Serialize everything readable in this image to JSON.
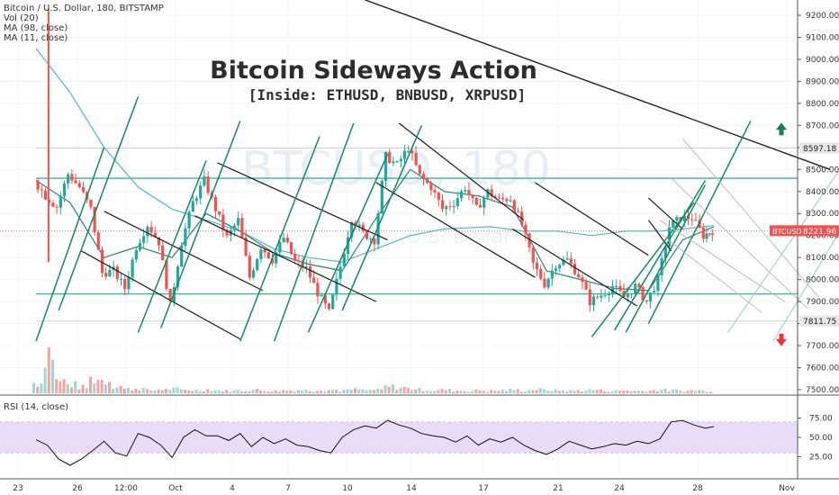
{
  "header": {
    "symbol_line": "Bitcoin / U.S. Dollar, 180, BITSTAMP",
    "volume_label": "Vol (20)",
    "ma_long_label": "MA (98, close)",
    "ma_short_label": "MA (11, close)",
    "rsi_label": "RSI (14, close)"
  },
  "annotation": {
    "title": "Bitcoin Sideways Action",
    "subtitle": "[Inside: ETHUSD, BNBUSD, XRPUSD]",
    "watermark_symbol": "BTCUSD",
    "watermark_interval": "180",
    "watermark_name": "U.S. Dollar"
  },
  "price_tags": {
    "upper_level": "8597.18",
    "current_symbol": "BTCUSD",
    "current_value": "8221.96",
    "lower_level": "7811.75"
  },
  "colors": {
    "up": "#26a69a",
    "down": "#ef5350",
    "channel": "#138a5e",
    "support": "#36b5a2",
    "ma_long": "#4fb8c8",
    "ma_short": "#2a7f7f",
    "rsi_band": "#e9dcf7",
    "trend": "#222222",
    "arrow_up": "#1b7d5b",
    "arrow_down": "#e53935"
  },
  "chart_data": {
    "type": "candlestick",
    "price_axis": {
      "ticks": [
        9200,
        9100,
        9000,
        8900,
        8800,
        8700,
        8600,
        8500,
        8400,
        8300,
        8200,
        8100,
        8000,
        7900,
        7800,
        7700,
        7600,
        7500
      ],
      "labels": [
        "9200.00",
        "9100.00",
        "9000.00",
        "8900.00",
        "8800.00",
        "8700.00",
        "8600.00",
        "8500.00",
        "8400.00",
        "8300.00",
        "8200.00",
        "8100.00",
        "8000.00",
        "7900.00",
        "7800.00",
        "7700.00",
        "7600.00",
        "7500.00"
      ],
      "range": [
        7480,
        9260
      ]
    },
    "rsi_axis": {
      "ticks": [
        75,
        50,
        25
      ],
      "labels": [
        "75.00",
        "50.00",
        "25.00"
      ],
      "range": [
        0,
        100
      ],
      "band": [
        30,
        70
      ]
    },
    "x_axis_labels": [
      "23",
      "26",
      "12:00",
      "Oct",
      "4",
      "7",
      "10",
      "14",
      "17",
      "21",
      "24",
      "28",
      "Nov"
    ],
    "close_path": [
      [
        0,
        8450
      ],
      [
        1,
        8380
      ],
      [
        2,
        8330
      ],
      [
        3,
        8480
      ],
      [
        4,
        8420
      ],
      [
        5,
        8320
      ],
      [
        6,
        8030
      ],
      [
        7,
        8040
      ],
      [
        8,
        7960
      ],
      [
        9,
        8150
      ],
      [
        10,
        8250
      ],
      [
        11,
        8170
      ],
      [
        12,
        7880
      ],
      [
        13,
        8170
      ],
      [
        14,
        8350
      ],
      [
        15,
        8450
      ],
      [
        16,
        8320
      ],
      [
        17,
        8190
      ],
      [
        18,
        8270
      ],
      [
        19,
        8010
      ],
      [
        20,
        8150
      ],
      [
        21,
        8090
      ],
      [
        22,
        8190
      ],
      [
        23,
        8080
      ],
      [
        24,
        8050
      ],
      [
        25,
        7940
      ],
      [
        26,
        7850
      ],
      [
        27,
        8060
      ],
      [
        28,
        8280
      ],
      [
        29,
        8210
      ],
      [
        30,
        8180
      ],
      [
        31,
        8560
      ],
      [
        32,
        8520
      ],
      [
        33,
        8600
      ],
      [
        34,
        8470
      ],
      [
        35,
        8420
      ],
      [
        36,
        8320
      ],
      [
        37,
        8350
      ],
      [
        38,
        8420
      ],
      [
        39,
        8320
      ],
      [
        40,
        8400
      ],
      [
        41,
        8360
      ],
      [
        42,
        8370
      ],
      [
        43,
        8250
      ],
      [
        44,
        8070
      ],
      [
        45,
        7980
      ],
      [
        46,
        8070
      ],
      [
        47,
        8090
      ],
      [
        48,
        8020
      ],
      [
        49,
        7900
      ],
      [
        50,
        7930
      ],
      [
        51,
        7970
      ],
      [
        52,
        7920
      ],
      [
        53,
        7970
      ],
      [
        54,
        7900
      ],
      [
        55,
        8000
      ],
      [
        56,
        8240
      ],
      [
        57,
        8280
      ],
      [
        58,
        8280
      ],
      [
        59,
        8200
      ],
      [
        59.75,
        8222
      ]
    ],
    "ma_long": [
      [
        0,
        9050
      ],
      [
        3,
        8850
      ],
      [
        6,
        8600
      ],
      [
        9,
        8420
      ],
      [
        12,
        8320
      ],
      [
        15,
        8270
      ],
      [
        18,
        8220
      ],
      [
        21,
        8140
      ],
      [
        24,
        8100
      ],
      [
        27,
        8080
      ],
      [
        30,
        8140
      ],
      [
        33,
        8200
      ],
      [
        36,
        8230
      ],
      [
        40,
        8240
      ],
      [
        43,
        8220
      ],
      [
        46,
        8220
      ],
      [
        49,
        8200
      ],
      [
        52,
        8220
      ],
      [
        55,
        8220
      ],
      [
        57,
        8230
      ],
      [
        59.75,
        8245
      ]
    ],
    "ma_short": [
      [
        0,
        8450
      ],
      [
        3,
        8350
      ],
      [
        6,
        8100
      ],
      [
        9,
        8150
      ],
      [
        12,
        8100
      ],
      [
        15,
        8300
      ],
      [
        18,
        8220
      ],
      [
        21,
        8120
      ],
      [
        24,
        8070
      ],
      [
        27,
        8040
      ],
      [
        30,
        8280
      ],
      [
        33,
        8500
      ],
      [
        36,
        8400
      ],
      [
        39,
        8380
      ],
      [
        42,
        8330
      ],
      [
        45,
        8040
      ],
      [
        48,
        8000
      ],
      [
        51,
        7960
      ],
      [
        54,
        7950
      ],
      [
        57,
        8180
      ],
      [
        59.75,
        8240
      ]
    ],
    "volume_profile": [
      [
        0,
        22
      ],
      [
        1,
        90
      ],
      [
        2,
        26
      ],
      [
        3,
        18
      ],
      [
        4,
        12
      ],
      [
        5,
        30
      ],
      [
        6,
        28
      ],
      [
        7,
        16
      ],
      [
        8,
        9
      ],
      [
        9,
        10
      ],
      [
        10,
        6
      ],
      [
        11,
        8
      ],
      [
        12,
        9
      ],
      [
        13,
        7
      ],
      [
        14,
        6
      ],
      [
        15,
        8
      ],
      [
        16,
        6
      ],
      [
        17,
        5
      ],
      [
        18,
        6
      ],
      [
        19,
        7
      ],
      [
        20,
        6
      ],
      [
        21,
        5
      ],
      [
        22,
        6
      ],
      [
        23,
        7
      ],
      [
        24,
        6
      ],
      [
        25,
        8
      ],
      [
        26,
        7
      ],
      [
        27,
        6
      ],
      [
        28,
        8
      ],
      [
        29,
        6
      ],
      [
        30,
        7
      ],
      [
        31,
        14
      ],
      [
        32,
        12
      ],
      [
        33,
        10
      ],
      [
        34,
        8
      ],
      [
        35,
        6
      ],
      [
        36,
        7
      ],
      [
        37,
        6
      ],
      [
        38,
        5
      ],
      [
        39,
        6
      ],
      [
        40,
        5
      ],
      [
        41,
        6
      ],
      [
        42,
        7
      ],
      [
        43,
        6
      ],
      [
        44,
        8
      ],
      [
        45,
        7
      ],
      [
        46,
        6
      ],
      [
        47,
        5
      ],
      [
        48,
        6
      ],
      [
        49,
        7
      ],
      [
        50,
        6
      ],
      [
        51,
        5
      ],
      [
        52,
        6
      ],
      [
        53,
        5
      ],
      [
        54,
        6
      ],
      [
        55,
        7
      ],
      [
        56,
        6
      ],
      [
        57,
        5
      ],
      [
        58,
        6
      ],
      [
        59,
        5
      ]
    ],
    "rsi_path": [
      [
        0,
        47
      ],
      [
        1,
        40
      ],
      [
        2,
        22
      ],
      [
        3,
        14
      ],
      [
        4,
        22
      ],
      [
        5,
        33
      ],
      [
        6,
        45
      ],
      [
        7,
        30
      ],
      [
        8,
        26
      ],
      [
        9,
        55
      ],
      [
        10,
        50
      ],
      [
        11,
        40
      ],
      [
        12,
        24
      ],
      [
        13,
        50
      ],
      [
        14,
        60
      ],
      [
        15,
        52
      ],
      [
        16,
        52
      ],
      [
        17,
        46
      ],
      [
        18,
        55
      ],
      [
        19,
        38
      ],
      [
        20,
        50
      ],
      [
        21,
        42
      ],
      [
        22,
        48
      ],
      [
        23,
        40
      ],
      [
        24,
        38
      ],
      [
        25,
        33
      ],
      [
        26,
        30
      ],
      [
        27,
        50
      ],
      [
        28,
        60
      ],
      [
        29,
        65
      ],
      [
        30,
        62
      ],
      [
        31,
        72
      ],
      [
        32,
        66
      ],
      [
        33,
        62
      ],
      [
        34,
        55
      ],
      [
        35,
        52
      ],
      [
        36,
        50
      ],
      [
        37,
        44
      ],
      [
        38,
        52
      ],
      [
        39,
        40
      ],
      [
        40,
        48
      ],
      [
        41,
        44
      ],
      [
        42,
        50
      ],
      [
        43,
        40
      ],
      [
        44,
        33
      ],
      [
        45,
        28
      ],
      [
        46,
        35
      ],
      [
        47,
        45
      ],
      [
        48,
        40
      ],
      [
        49,
        35
      ],
      [
        50,
        38
      ],
      [
        51,
        42
      ],
      [
        52,
        40
      ],
      [
        53,
        45
      ],
      [
        54,
        42
      ],
      [
        55,
        48
      ],
      [
        56,
        70
      ],
      [
        57,
        72
      ],
      [
        58,
        66
      ],
      [
        59,
        62
      ],
      [
        59.75,
        64
      ]
    ],
    "levels": {
      "resistance": 8460,
      "support": 7935,
      "upper_label_level": 8597.18,
      "lower_label_level": 7811.75,
      "current": 8221.96
    },
    "trendline": {
      "from": [
        29,
        9270
      ],
      "to": [
        70,
        8500
      ]
    },
    "descending_channels": [
      {
        "a": [
          [
            6,
            8310
          ],
          [
            20,
            7950
          ]
        ],
        "b": [
          [
            4,
            8130
          ],
          [
            18,
            7730
          ]
        ]
      },
      {
        "a": [
          [
            16,
            8530
          ],
          [
            31,
            8180
          ]
        ],
        "b": [
          [
            14,
            8290
          ],
          [
            30,
            7900
          ]
        ]
      },
      {
        "a": [
          [
            32,
            8710
          ],
          [
            43,
            8270
          ]
        ],
        "b": [
          [
            30,
            8440
          ],
          [
            44,
            8010
          ]
        ]
      },
      {
        "a": [
          [
            44,
            8440
          ],
          [
            54,
            8110
          ]
        ],
        "b": [
          [
            42,
            8230
          ],
          [
            53,
            7880
          ]
        ]
      },
      {
        "a": [
          [
            54,
            8370
          ],
          [
            57,
            8230
          ]
        ],
        "b": [
          [
            54,
            8270
          ],
          [
            56,
            8130
          ]
        ]
      }
    ],
    "ascending_channels": [
      {
        "a": [
          [
            2,
            7860
          ],
          [
            9,
            8830
          ]
        ],
        "b": [
          [
            0,
            7720
          ],
          [
            6,
            8600
          ]
        ]
      },
      {
        "a": [
          [
            11,
            7780
          ],
          [
            18,
            8720
          ]
        ],
        "b": [
          [
            9,
            7760
          ],
          [
            15,
            8540
          ]
        ]
      },
      {
        "a": [
          [
            21,
            7720
          ],
          [
            28,
            8710
          ]
        ],
        "b": [
          [
            18,
            7720
          ],
          [
            25,
            8650
          ]
        ]
      },
      {
        "a": [
          [
            27,
            7860
          ],
          [
            34,
            8700
          ]
        ],
        "b": [
          [
            24,
            7760
          ],
          [
            31,
            8570
          ]
        ]
      },
      {
        "a": [
          [
            51,
            7770
          ],
          [
            59,
            8450
          ]
        ],
        "b": [
          [
            49,
            7740
          ],
          [
            58,
            8350
          ]
        ]
      },
      {
        "a": [
          [
            54,
            7800
          ],
          [
            63,
            8720
          ]
        ],
        "b": [
          [
            52,
            7760
          ],
          [
            59,
            8430
          ]
        ]
      }
    ],
    "projected_channels": [
      {
        "a": [
          [
            55,
            8270
          ],
          [
            66,
            7900
          ]
        ],
        "b": [
          [
            55,
            8210
          ],
          [
            64,
            7850
          ]
        ]
      },
      {
        "a": [
          [
            57,
            8640
          ],
          [
            69,
            7920
          ]
        ],
        "b": [
          [
            56,
            8460
          ],
          [
            68,
            7870
          ]
        ]
      },
      {
        "a": [
          [
            61,
            7760
          ],
          [
            73,
            8660
          ]
        ],
        "b": [
          [
            65,
            7720
          ],
          [
            75,
            8570
          ]
        ]
      }
    ],
    "arrows": {
      "up": 8680,
      "down": 7730
    }
  }
}
